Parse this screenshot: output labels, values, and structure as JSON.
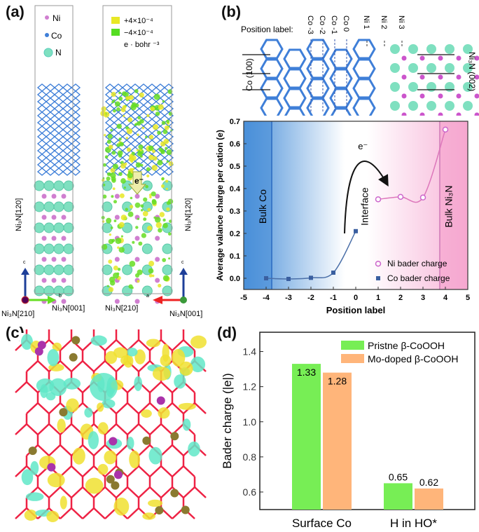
{
  "panels": {
    "a": {
      "label": "(a)",
      "legend": [
        {
          "name": "Ni",
          "color": "#d07fd0"
        },
        {
          "name": "Co",
          "color": "#3f7fd8"
        },
        {
          "name": "N",
          "color": "#7fe0c0"
        }
      ],
      "density_legend": {
        "positive": "+4×10⁻⁴",
        "negative": "−4×10⁻⁴",
        "unit": "e · bohr ⁻³",
        "positive_color": "#e8e826",
        "negative_color": "#55dd22"
      },
      "electron_label": "e⁻",
      "axis_c": "c",
      "axis_b": "b",
      "axis_a": "a",
      "dir_120": "Ni₃N[120]",
      "dir_210": "Ni₃N[210]",
      "dir_001": "Ni₃N[001]"
    },
    "b": {
      "label": "(b)",
      "position_label_title": "Position label:",
      "position_labels": [
        "Co -3",
        "Co -2",
        "Co -1",
        "Co 0",
        "Ni 1",
        "Ni 2",
        "Ni 3"
      ],
      "co_plane": "Co (100)",
      "ni3n_plane": "Ni₃N (002)"
    },
    "c": {
      "label": "(c)"
    },
    "d": {
      "label": "(d)"
    }
  },
  "chart_data": [
    {
      "type": "line",
      "panel": "b",
      "xlabel": "Position label",
      "ylabel": "Average valance charge per cation (e)",
      "xlim": [
        -5,
        5
      ],
      "ylim": [
        -0.05,
        0.7
      ],
      "xticks": [
        -5,
        -4,
        -3,
        -2,
        -1,
        0,
        1,
        2,
        3,
        4,
        5
      ],
      "yticks": [
        0.0,
        0.1,
        0.2,
        0.3,
        0.4,
        0.5,
        0.6,
        0.7
      ],
      "series": [
        {
          "name": "Ni bader charge",
          "marker": "open-circle",
          "color": "#cc66cc",
          "x": [
            1,
            2,
            3,
            4
          ],
          "y": [
            0.352,
            0.363,
            0.36,
            0.663
          ]
        },
        {
          "name": "Co bader charge",
          "marker": "square",
          "color": "#3a5fa0",
          "x": [
            -4,
            -3,
            -2,
            -1,
            0
          ],
          "y": [
            0.0,
            -0.003,
            0.002,
            0.025,
            0.21
          ]
        }
      ],
      "annotations": {
        "bulk_co": "Bulk Co",
        "interface": "Interface",
        "bulk_ni3n": "Bulk Ni₃N",
        "electron": "e⁻"
      },
      "region_lines": [
        -3.75,
        3.75
      ],
      "region_colors": {
        "co": "#4a90d9",
        "ni3n": "#f5a0cc"
      },
      "legend_position": "bottom-right"
    },
    {
      "type": "bar",
      "panel": "d",
      "categories": [
        "Surface Co",
        "H in HO*"
      ],
      "series": [
        {
          "name": "Pristne β-CoOOH",
          "color": "#77ee55",
          "values": [
            1.33,
            0.65
          ]
        },
        {
          "name": "Mo-doped β-CoOOH",
          "color": "#ffb57a",
          "values": [
            1.28,
            0.62
          ]
        }
      ],
      "data_labels": [
        [
          "1.33",
          "0.65"
        ],
        [
          "1.28",
          "0.62"
        ]
      ],
      "ylabel": "Bader charge (|e|)",
      "ylim": [
        0.5,
        1.51
      ],
      "yticks": [
        "0.6",
        "0.8",
        "1.0",
        "1.2",
        "1.4"
      ],
      "legend_position": "top-right"
    }
  ]
}
